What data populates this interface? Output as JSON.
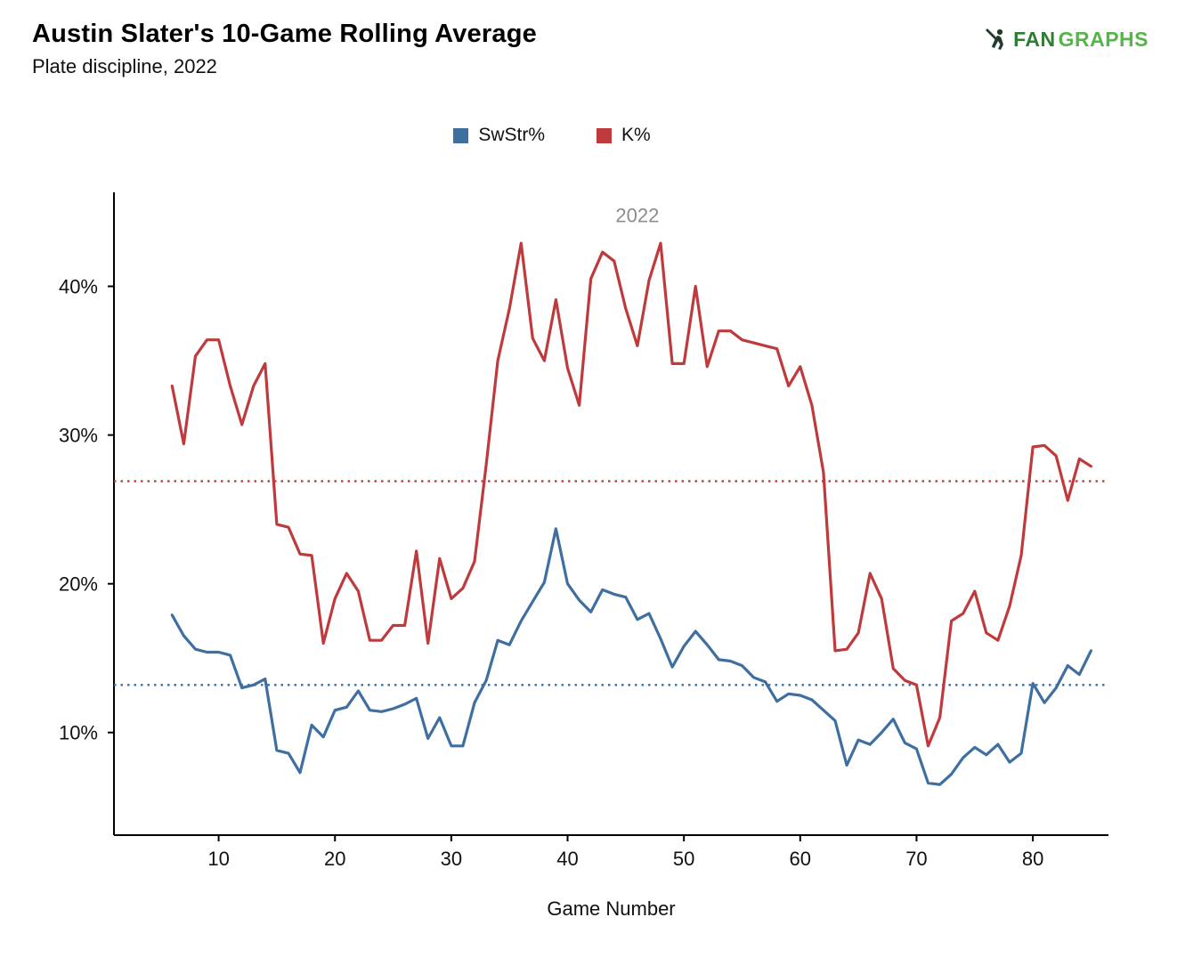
{
  "header": {
    "title": "Austin Slater's 10-Game Rolling Average",
    "subtitle": "Plate discipline, 2022"
  },
  "logo": {
    "part1": "FAN",
    "part2": "GRAPHS",
    "icon": "batter-icon",
    "color_fan": "#2e7d32",
    "color_graphs": "#56b44a"
  },
  "chart_data": {
    "type": "line",
    "title": "Austin Slater's 10-Game Rolling Average",
    "subtitle": "Plate discipline, 2022",
    "xlabel": "Game Number",
    "ylabel": "",
    "grid": false,
    "legend_position": "top",
    "annotation": {
      "text": "2022",
      "x": 46,
      "y": 44.3,
      "color": "#8c8c8c"
    },
    "xticks": [
      10,
      20,
      30,
      40,
      50,
      60,
      70,
      80
    ],
    "yticks": [
      10,
      20,
      30,
      40
    ],
    "xlim": [
      1,
      86.5
    ],
    "ylim": [
      3.1,
      46.2
    ],
    "x": [
      6,
      7,
      8,
      9,
      10,
      11,
      12,
      13,
      14,
      15,
      16,
      17,
      18,
      19,
      20,
      21,
      22,
      23,
      24,
      25,
      26,
      27,
      28,
      29,
      30,
      31,
      32,
      33,
      34,
      35,
      36,
      37,
      38,
      39,
      40,
      41,
      42,
      43,
      44,
      45,
      46,
      47,
      48,
      49,
      50,
      51,
      52,
      53,
      54,
      55,
      56,
      57,
      58,
      59,
      60,
      61,
      62,
      63,
      64,
      65,
      66,
      67,
      68,
      69,
      70,
      71,
      72,
      73,
      74,
      75,
      76,
      77,
      78,
      79,
      80,
      81,
      82,
      83,
      84,
      85
    ],
    "series": [
      {
        "name": "SwStr%",
        "color": "#3f6fa0",
        "values": [
          17.9,
          16.5,
          15.6,
          15.4,
          15.4,
          15.2,
          13.0,
          13.2,
          13.6,
          8.8,
          8.6,
          7.3,
          10.5,
          9.7,
          11.5,
          11.7,
          12.8,
          11.5,
          11.4,
          11.6,
          11.9,
          12.3,
          9.6,
          11.0,
          9.1,
          9.1,
          12.0,
          13.5,
          16.2,
          15.9,
          17.5,
          18.8,
          20.1,
          23.7,
          20.0,
          18.9,
          18.1,
          19.6,
          19.3,
          19.1,
          17.6,
          18.0,
          16.3,
          14.4,
          15.8,
          16.8,
          15.9,
          14.9,
          14.8,
          14.5,
          13.7,
          13.4,
          12.1,
          12.6,
          12.5,
          12.2,
          11.5,
          10.8,
          7.8,
          9.5,
          9.2,
          10.0,
          10.9,
          9.3,
          8.9,
          6.6,
          6.5,
          7.2,
          8.3,
          9.0,
          8.5,
          9.2,
          8.0,
          8.6,
          13.3,
          12.0,
          13.0,
          14.5,
          13.9,
          15.5
        ]
      },
      {
        "name": "K%",
        "color": "#bf3a3c",
        "values": [
          33.3,
          29.4,
          35.3,
          36.4,
          36.4,
          33.3,
          30.7,
          33.3,
          34.8,
          24.0,
          23.8,
          22.0,
          21.9,
          16.0,
          19.0,
          20.7,
          19.5,
          16.2,
          16.2,
          17.2,
          17.2,
          22.2,
          16.0,
          21.7,
          19.0,
          19.7,
          21.5,
          28.0,
          35.0,
          38.5,
          42.9,
          36.5,
          35.0,
          39.1,
          34.5,
          32.0,
          40.5,
          42.3,
          41.7,
          38.5,
          36.0,
          40.4,
          42.9,
          34.8,
          34.8,
          40.0,
          34.6,
          37.0,
          37.0,
          36.4,
          36.2,
          36.0,
          35.8,
          33.3,
          34.6,
          32.0,
          27.5,
          15.5,
          15.6,
          16.7,
          20.7,
          19.0,
          14.3,
          13.5,
          13.2,
          9.1,
          11.0,
          17.5,
          18.0,
          19.5,
          16.7,
          16.2,
          18.5,
          21.9,
          29.2,
          29.3,
          28.6,
          25.6,
          28.4,
          27.9
        ]
      }
    ],
    "reference_lines": [
      {
        "series": "SwStr%",
        "value": 13.2,
        "color": "#3f6fa0"
      },
      {
        "series": "K%",
        "value": 26.9,
        "color": "#bf3a3c"
      }
    ]
  }
}
